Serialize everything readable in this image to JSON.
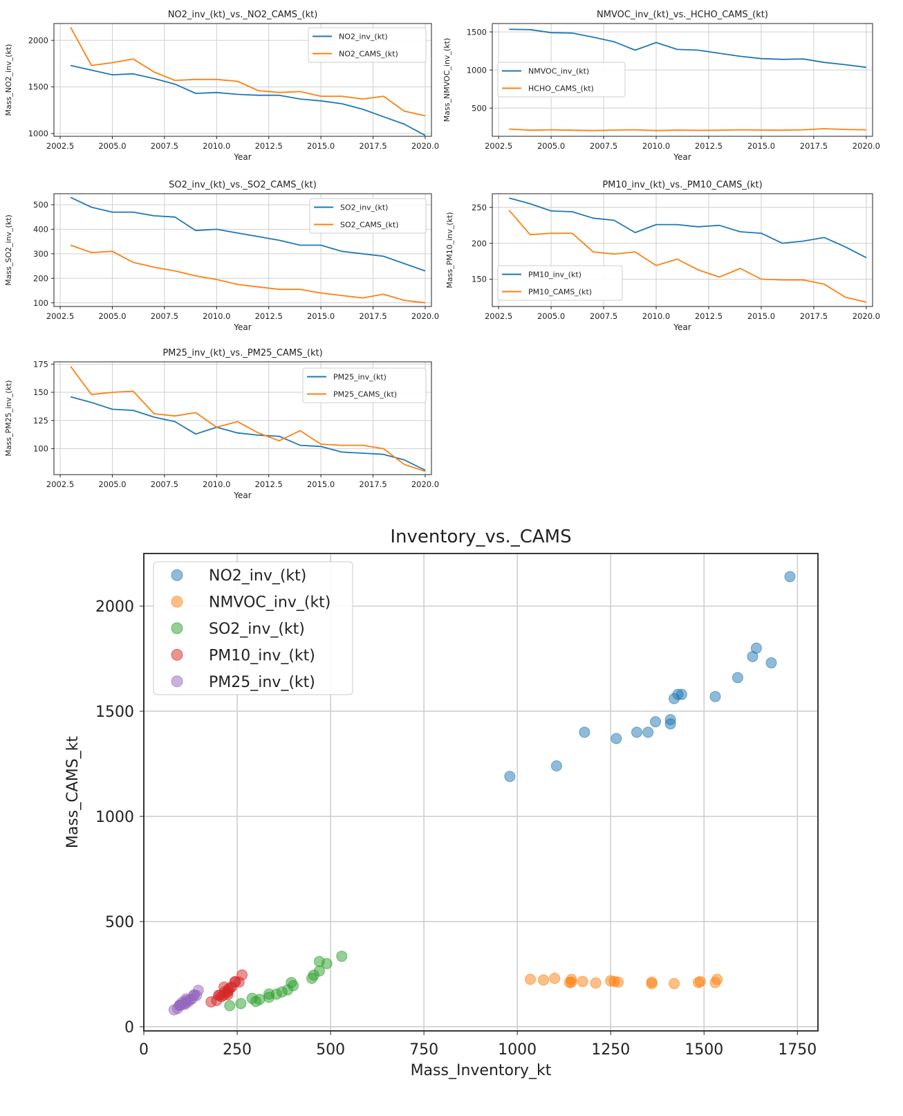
{
  "colors": {
    "blue": "#1f77b4",
    "orange": "#ff7f0e",
    "green": "#2ca02c",
    "red": "#d62728",
    "purple": "#9467bd",
    "grid": "#cfcfcf",
    "axis": "#222222"
  },
  "chart_data": [
    {
      "type": "line",
      "title": "NO2_inv_(kt)_vs._NO2_CAMS_(kt)",
      "xlabel": "Year",
      "ylabel": "Mass_NO2_inv_(kt)",
      "xlim": [
        2002.2,
        2020.3
      ],
      "ylim": [
        970,
        2180
      ],
      "xticks": [
        2002.5,
        2005.0,
        2007.5,
        2010.0,
        2012.5,
        2015.0,
        2017.5,
        2020.0
      ],
      "yticks": [
        1000,
        1500,
        2000
      ],
      "grid": true,
      "legend_position": "top-right",
      "x": [
        2003,
        2004,
        2005,
        2006,
        2007,
        2008,
        2009,
        2010,
        2011,
        2012,
        2013,
        2014,
        2015,
        2016,
        2017,
        2018,
        2019,
        2020
      ],
      "series": [
        {
          "name": "NO2_inv_(kt)",
          "color": "blue",
          "values": [
            1730,
            1680,
            1630,
            1640,
            1590,
            1530,
            1430,
            1440,
            1420,
            1410,
            1410,
            1370,
            1350,
            1320,
            1260,
            1180,
            1100,
            980
          ]
        },
        {
          "name": "NO2_CAMS_(kt)",
          "color": "orange",
          "values": [
            2140,
            1730,
            1760,
            1800,
            1660,
            1570,
            1580,
            1580,
            1560,
            1460,
            1440,
            1450,
            1400,
            1400,
            1370,
            1400,
            1240,
            1190
          ]
        }
      ]
    },
    {
      "type": "line",
      "title": "NMVOC_inv_(kt)_vs._HCHO_CAMS_(kt)",
      "xlabel": "Year",
      "ylabel": "Mass_NMVOC_inv_(kt)",
      "xlim": [
        2002.2,
        2020.3
      ],
      "ylim": [
        130,
        1610
      ],
      "xticks": [
        2002.5,
        2005.0,
        2007.5,
        2010.0,
        2012.5,
        2015.0,
        2017.5,
        2020.0
      ],
      "yticks": [
        500,
        1000,
        1500
      ],
      "grid": true,
      "legend_position": "center-left",
      "x": [
        2003,
        2004,
        2005,
        2006,
        2007,
        2008,
        2009,
        2010,
        2011,
        2012,
        2013,
        2014,
        2015,
        2016,
        2017,
        2018,
        2019,
        2020
      ],
      "series": [
        {
          "name": "NMVOC_inv_(kt)",
          "color": "blue",
          "values": [
            1535,
            1530,
            1490,
            1485,
            1430,
            1370,
            1260,
            1360,
            1270,
            1260,
            1220,
            1180,
            1150,
            1140,
            1145,
            1100,
            1070,
            1035
          ]
        },
        {
          "name": "HCHO_CAMS_(kt)",
          "color": "orange",
          "values": [
            225,
            210,
            215,
            210,
            205,
            212,
            215,
            205,
            212,
            208,
            210,
            215,
            212,
            210,
            215,
            230,
            220,
            215
          ]
        }
      ]
    },
    {
      "type": "line",
      "title": "SO2_inv_(kt)_vs._SO2_CAMS_(kt)",
      "xlabel": "Year",
      "ylabel": "Mass_SO2_inv_(kt)",
      "xlim": [
        2002.2,
        2020.3
      ],
      "ylim": [
        85,
        545
      ],
      "xticks": [
        2002.5,
        2005.0,
        2007.5,
        2010.0,
        2012.5,
        2015.0,
        2017.5,
        2020.0
      ],
      "yticks": [
        100,
        200,
        300,
        400,
        500
      ],
      "grid": true,
      "legend_position": "top-right",
      "x": [
        2003,
        2004,
        2005,
        2006,
        2007,
        2008,
        2009,
        2010,
        2011,
        2012,
        2013,
        2014,
        2015,
        2016,
        2017,
        2018,
        2019,
        2020
      ],
      "series": [
        {
          "name": "SO2_inv_(kt)",
          "color": "blue",
          "values": [
            530,
            490,
            470,
            470,
            455,
            450,
            395,
            400,
            385,
            370,
            355,
            335,
            335,
            310,
            300,
            290,
            260,
            230
          ]
        },
        {
          "name": "SO2_CAMS_(kt)",
          "color": "orange",
          "values": [
            335,
            305,
            310,
            265,
            245,
            230,
            210,
            195,
            175,
            165,
            155,
            155,
            140,
            130,
            120,
            135,
            110,
            100
          ]
        }
      ]
    },
    {
      "type": "line",
      "title": "PM10_inv_(kt)_vs._PM10_CAMS_(kt)",
      "xlabel": "Year",
      "ylabel": "Mass_PM10_inv_(kt)",
      "xlim": [
        2002.2,
        2020.3
      ],
      "ylim": [
        112,
        269
      ],
      "xticks": [
        2002.5,
        2005.0,
        2007.5,
        2010.0,
        2012.5,
        2015.0,
        2017.5,
        2020.0
      ],
      "yticks": [
        150,
        200,
        250
      ],
      "grid": true,
      "legend_position": "lower-left",
      "x": [
        2003,
        2004,
        2005,
        2006,
        2007,
        2008,
        2009,
        2010,
        2011,
        2012,
        2013,
        2014,
        2015,
        2016,
        2017,
        2018,
        2019,
        2020
      ],
      "series": [
        {
          "name": "PM10_inv_(kt)",
          "color": "blue",
          "values": [
            263,
            255,
            245,
            244,
            235,
            232,
            215,
            226,
            226,
            223,
            225,
            216,
            214,
            200,
            203,
            208,
            195,
            180
          ]
        },
        {
          "name": "PM10_CAMS_(kt)",
          "color": "orange",
          "values": [
            246,
            212,
            214,
            214,
            188,
            185,
            188,
            169,
            178,
            163,
            153,
            165,
            150,
            149,
            149,
            143,
            125,
            118
          ]
        }
      ]
    },
    {
      "type": "line",
      "title": "PM25_inv_(kt)_vs._PM25_CAMS_(kt)",
      "xlabel": "Year",
      "ylabel": "Mass_PM25_inv_(kt)",
      "xlim": [
        2002.2,
        2020.3
      ],
      "ylim": [
        77,
        177
      ],
      "xticks": [
        2002.5,
        2005.0,
        2007.5,
        2010.0,
        2012.5,
        2015.0,
        2017.5,
        2020.0
      ],
      "yticks": [
        100,
        125,
        150,
        175
      ],
      "grid": true,
      "legend_position": "top-right",
      "x": [
        2003,
        2004,
        2005,
        2006,
        2007,
        2008,
        2009,
        2010,
        2011,
        2012,
        2013,
        2014,
        2015,
        2016,
        2017,
        2018,
        2019,
        2020
      ],
      "series": [
        {
          "name": "PM25_inv_(kt)",
          "color": "blue",
          "values": [
            146,
            141,
            135,
            134,
            128,
            124,
            113,
            119,
            114,
            112,
            111,
            103,
            102,
            97,
            96,
            95,
            90,
            81
          ]
        },
        {
          "name": "PM25_CAMS_(kt)",
          "color": "orange",
          "values": [
            173,
            148,
            150,
            151,
            131,
            129,
            132,
            119,
            124,
            114,
            107,
            116,
            104,
            103,
            103,
            100,
            86,
            80
          ]
        }
      ]
    },
    {
      "type": "scatter",
      "title": "Inventory_vs._CAMS",
      "xlabel": "Mass_Inventory_kt",
      "ylabel": "Mass_CAMS_kt",
      "xlim": [
        0,
        1805
      ],
      "ylim": [
        -20,
        2250
      ],
      "xticks": [
        0,
        250,
        500,
        750,
        1000,
        1250,
        1500,
        1750
      ],
      "yticks": [
        0,
        500,
        1000,
        1500,
        2000
      ],
      "grid": true,
      "legend_position": "top-left",
      "series": [
        {
          "name": "NO2_inv_(kt)",
          "color": "blue",
          "points": [
            [
              1730,
              2140
            ],
            [
              1680,
              1730
            ],
            [
              1630,
              1760
            ],
            [
              1640,
              1800
            ],
            [
              1590,
              1660
            ],
            [
              1530,
              1570
            ],
            [
              1430,
              1580
            ],
            [
              1440,
              1580
            ],
            [
              1420,
              1560
            ],
            [
              1410,
              1460
            ],
            [
              1410,
              1440
            ],
            [
              1370,
              1450
            ],
            [
              1350,
              1400
            ],
            [
              1320,
              1400
            ],
            [
              1265,
              1370
            ],
            [
              1180,
              1400
            ],
            [
              1105,
              1240
            ],
            [
              980,
              1190
            ]
          ]
        },
        {
          "name": "NMVOC_inv_(kt)",
          "color": "orange",
          "points": [
            [
              1535,
              225
            ],
            [
              1530,
              210
            ],
            [
              1490,
              215
            ],
            [
              1485,
              210
            ],
            [
              1420,
              205
            ],
            [
              1360,
              212
            ],
            [
              1260,
              215
            ],
            [
              1360,
              205
            ],
            [
              1270,
              212
            ],
            [
              1250,
              218
            ],
            [
              1210,
              208
            ],
            [
              1175,
              215
            ],
            [
              1145,
              212
            ],
            [
              1140,
              210
            ],
            [
              1145,
              225
            ],
            [
              1100,
              230
            ],
            [
              1070,
              222
            ],
            [
              1035,
              225
            ]
          ]
        },
        {
          "name": "SO2_inv_(kt)",
          "color": "green",
          "points": [
            [
              530,
              335
            ],
            [
              490,
              300
            ],
            [
              470,
              310
            ],
            [
              470,
              265
            ],
            [
              455,
              245
            ],
            [
              450,
              230
            ],
            [
              395,
              210
            ],
            [
              400,
              195
            ],
            [
              385,
              175
            ],
            [
              370,
              165
            ],
            [
              355,
              155
            ],
            [
              335,
              155
            ],
            [
              335,
              140
            ],
            [
              310,
              130
            ],
            [
              300,
              120
            ],
            [
              290,
              135
            ],
            [
              260,
              110
            ],
            [
              230,
              100
            ]
          ]
        },
        {
          "name": "PM10_inv_(kt)",
          "color": "red",
          "points": [
            [
              263,
              246
            ],
            [
              255,
              212
            ],
            [
              245,
              214
            ],
            [
              244,
              214
            ],
            [
              235,
              188
            ],
            [
              232,
              185
            ],
            [
              215,
              188
            ],
            [
              226,
              169
            ],
            [
              226,
              178
            ],
            [
              223,
              163
            ],
            [
              225,
              153
            ],
            [
              216,
              165
            ],
            [
              214,
              150
            ],
            [
              200,
              149
            ],
            [
              203,
              149
            ],
            [
              208,
              143
            ],
            [
              195,
              125
            ],
            [
              180,
              118
            ]
          ]
        },
        {
          "name": "PM25_inv_(kt)",
          "color": "purple",
          "points": [
            [
              146,
              173
            ],
            [
              141,
              148
            ],
            [
              135,
              150
            ],
            [
              134,
              151
            ],
            [
              128,
              131
            ],
            [
              124,
              129
            ],
            [
              113,
              132
            ],
            [
              119,
              119
            ],
            [
              114,
              124
            ],
            [
              112,
              114
            ],
            [
              111,
              107
            ],
            [
              103,
              116
            ],
            [
              102,
              104
            ],
            [
              97,
              103
            ],
            [
              96,
              103
            ],
            [
              95,
              100
            ],
            [
              90,
              86
            ],
            [
              81,
              80
            ]
          ]
        }
      ]
    }
  ]
}
